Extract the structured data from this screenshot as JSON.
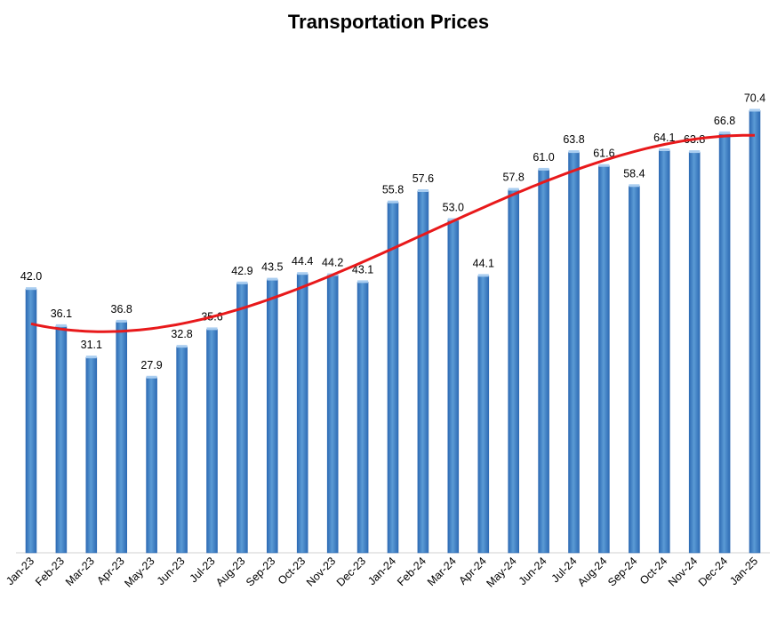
{
  "chart_data": {
    "type": "bar",
    "title": "Transportation Prices",
    "xlabel": "",
    "ylabel": "",
    "categories": [
      "Jan-23",
      "Feb-23",
      "Mar-23",
      "Apr-23",
      "May-23",
      "Jun-23",
      "Jul-23",
      "Aug-23",
      "Sep-23",
      "Oct-23",
      "Nov-23",
      "Dec-23",
      "Jan-24",
      "Feb-24",
      "Mar-24",
      "Apr-24",
      "May-24",
      "Jun-24",
      "Jul-24",
      "Aug-24",
      "Sep-24",
      "Oct-24",
      "Nov-24",
      "Dec-24",
      "Jan-25"
    ],
    "values": [
      42.0,
      36.1,
      31.1,
      36.8,
      27.9,
      32.8,
      35.6,
      42.9,
      43.5,
      44.4,
      44.2,
      43.1,
      55.8,
      57.6,
      53.0,
      44.1,
      57.8,
      61.0,
      63.8,
      61.6,
      58.4,
      64.1,
      63.8,
      66.8,
      70.4
    ],
    "value_labels": [
      "42.0",
      "36.1",
      "31.1",
      "36.8",
      "27.9",
      "32.8",
      "35.6",
      "42.9",
      "43.5",
      "44.4",
      "44.2",
      "43.1",
      "55.8",
      "57.6",
      "53.0",
      "44.1",
      "57.8",
      "61.0",
      "63.8",
      "61.6",
      "58.4",
      "64.1",
      "63.8",
      "66.8",
      "70.4"
    ],
    "ylim": [
      0,
      75
    ],
    "bar_color": "#5b9bd5",
    "bar_color_dark": "#2e6bb4",
    "trendline": {
      "type": "polynomial",
      "color": "#e8191b"
    },
    "grid": false,
    "legend": "none"
  }
}
